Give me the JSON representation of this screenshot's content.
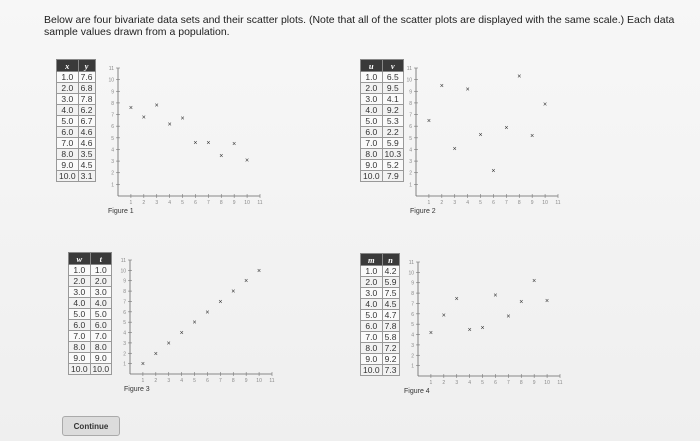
{
  "intro_text": "Below are four bivariate data sets and their scatter plots. (Note that all of the scatter plots are displayed with the same scale.) Each data sample values drawn from a population.",
  "continue_label": "Continue",
  "datasets": [
    {
      "headers": [
        "x",
        "y"
      ],
      "rows": [
        [
          "1.0",
          "7.6"
        ],
        [
          "2.0",
          "6.8"
        ],
        [
          "3.0",
          "7.8"
        ],
        [
          "4.0",
          "6.2"
        ],
        [
          "5.0",
          "6.7"
        ],
        [
          "6.0",
          "4.6"
        ],
        [
          "7.0",
          "4.6"
        ],
        [
          "8.0",
          "3.5"
        ],
        [
          "9.0",
          "4.5"
        ],
        [
          "10.0",
          "3.1"
        ]
      ],
      "figure_label": "Figure 1"
    },
    {
      "headers": [
        "u",
        "v"
      ],
      "rows": [
        [
          "1.0",
          "6.5"
        ],
        [
          "2.0",
          "9.5"
        ],
        [
          "3.0",
          "4.1"
        ],
        [
          "4.0",
          "9.2"
        ],
        [
          "5.0",
          "5.3"
        ],
        [
          "6.0",
          "2.2"
        ],
        [
          "7.0",
          "5.9"
        ],
        [
          "8.0",
          "10.3"
        ],
        [
          "9.0",
          "5.2"
        ],
        [
          "10.0",
          "7.9"
        ]
      ],
      "figure_label": "Figure 2"
    },
    {
      "headers": [
        "w",
        "t"
      ],
      "rows": [
        [
          "1.0",
          "1.0"
        ],
        [
          "2.0",
          "2.0"
        ],
        [
          "3.0",
          "3.0"
        ],
        [
          "4.0",
          "4.0"
        ],
        [
          "5.0",
          "5.0"
        ],
        [
          "6.0",
          "6.0"
        ],
        [
          "7.0",
          "7.0"
        ],
        [
          "8.0",
          "8.0"
        ],
        [
          "9.0",
          "9.0"
        ],
        [
          "10.0",
          "10.0"
        ]
      ],
      "figure_label": "Figure 3"
    },
    {
      "headers": [
        "m",
        "n"
      ],
      "rows": [
        [
          "1.0",
          "4.2"
        ],
        [
          "2.0",
          "5.9"
        ],
        [
          "3.0",
          "7.5"
        ],
        [
          "4.0",
          "4.5"
        ],
        [
          "5.0",
          "4.7"
        ],
        [
          "6.0",
          "7.8"
        ],
        [
          "7.0",
          "5.8"
        ],
        [
          "8.0",
          "7.2"
        ],
        [
          "9.0",
          "9.2"
        ],
        [
          "10.0",
          "7.3"
        ]
      ],
      "figure_label": "Figure 4"
    }
  ],
  "plot_scale": {
    "x_ticks": [
      "1",
      "2",
      "3",
      "4",
      "5",
      "6",
      "7",
      "8",
      "9",
      "10",
      "11"
    ],
    "y_ticks": [
      "1",
      "2",
      "3",
      "4",
      "5",
      "6",
      "7",
      "8",
      "9",
      "10",
      "11"
    ],
    "xlim": [
      0,
      11
    ],
    "ylim": [
      0,
      11
    ]
  },
  "chart_data": [
    {
      "type": "scatter",
      "x": [
        1.0,
        2.0,
        3.0,
        4.0,
        5.0,
        6.0,
        7.0,
        8.0,
        9.0,
        10.0
      ],
      "y": [
        7.6,
        6.8,
        7.8,
        6.2,
        6.7,
        4.6,
        4.6,
        3.5,
        4.5,
        3.1
      ],
      "xlim": [
        0,
        11
      ],
      "ylim": [
        0,
        11
      ],
      "marker": "x"
    },
    {
      "type": "scatter",
      "x": [
        1.0,
        2.0,
        3.0,
        4.0,
        5.0,
        6.0,
        7.0,
        8.0,
        9.0,
        10.0
      ],
      "y": [
        6.5,
        9.5,
        4.1,
        9.2,
        5.3,
        2.2,
        5.9,
        10.3,
        5.2,
        7.9
      ],
      "xlim": [
        0,
        11
      ],
      "ylim": [
        0,
        11
      ],
      "marker": "x"
    },
    {
      "type": "scatter",
      "x": [
        1.0,
        2.0,
        3.0,
        4.0,
        5.0,
        6.0,
        7.0,
        8.0,
        9.0,
        10.0
      ],
      "y": [
        1.0,
        2.0,
        3.0,
        4.0,
        5.0,
        6.0,
        7.0,
        8.0,
        9.0,
        10.0
      ],
      "xlim": [
        0,
        11
      ],
      "ylim": [
        0,
        11
      ],
      "marker": "x"
    },
    {
      "type": "scatter",
      "x": [
        1.0,
        2.0,
        3.0,
        4.0,
        5.0,
        6.0,
        7.0,
        8.0,
        9.0,
        10.0
      ],
      "y": [
        4.2,
        5.9,
        7.5,
        4.5,
        4.7,
        7.8,
        5.8,
        7.2,
        9.2,
        7.3
      ],
      "xlim": [
        0,
        11
      ],
      "ylim": [
        0,
        11
      ],
      "marker": "x"
    }
  ]
}
